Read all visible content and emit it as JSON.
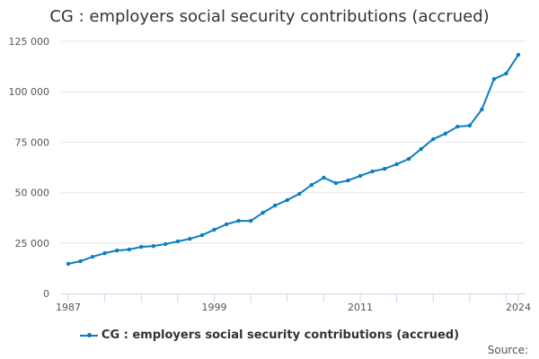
{
  "title": "CG : employers social security contributions (accrued)",
  "source_label": "Source:",
  "chart_data": {
    "type": "line",
    "title": "CG : employers social security contributions (accrued)",
    "xlabel": "",
    "ylabel": "",
    "x": [
      1987,
      1988,
      1989,
      1990,
      1991,
      1992,
      1993,
      1994,
      1995,
      1996,
      1997,
      1998,
      1999,
      2000,
      2001,
      2002,
      2003,
      2004,
      2005,
      2006,
      2007,
      2008,
      2009,
      2010,
      2011,
      2012,
      2013,
      2014,
      2015,
      2016,
      2017,
      2018,
      2019,
      2020,
      2021,
      2022,
      2023,
      2024
    ],
    "series": [
      {
        "name": "CG : employers social security contributions (accrued)",
        "color": "#0a7ec2",
        "values": [
          14700,
          16000,
          18200,
          20000,
          21300,
          21800,
          23100,
          23500,
          24500,
          25800,
          27100,
          28900,
          31600,
          34300,
          36000,
          36000,
          40000,
          43600,
          46300,
          49400,
          53800,
          57400,
          54700,
          56000,
          58300,
          60500,
          61800,
          64100,
          66700,
          71600,
          76500,
          79200,
          82700,
          83200,
          91200,
          106300,
          109000,
          118300
        ]
      }
    ],
    "ylim": [
      0,
      125000
    ],
    "yticks": [
      0,
      25000,
      50000,
      75000,
      100000,
      125000
    ],
    "ytick_labels": [
      "0",
      "25 000",
      "50 000",
      "75 000",
      "100 000",
      "125 000"
    ],
    "xtick_labels": [
      "1987",
      "1999",
      "2011",
      "2024"
    ],
    "grid": true,
    "legend": "bottom-center"
  }
}
